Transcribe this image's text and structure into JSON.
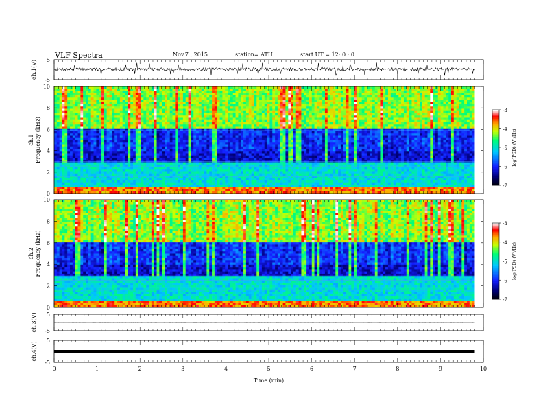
{
  "header": {
    "title": "VLF  Spectra",
    "date": "Nov.7  , 2015",
    "station": "station= ATH",
    "start": "start  UT  =   12: 0  : 0"
  },
  "colorbar": {
    "label": "log(PSD) (V²/Hz)",
    "ticks": [
      "-3",
      "-4",
      "-5",
      "-6",
      "-7"
    ],
    "colors": [
      "#000000",
      "#1a1aff",
      "#00c8ff",
      "#00ff80",
      "#ffff00",
      "#ff8000",
      "#ff0000",
      "#ffffff"
    ]
  },
  "chart_data": [
    {
      "type": "line",
      "ylabel": "ch.1(V)",
      "ylim": [
        -5,
        5
      ],
      "yticks": [
        "5",
        "-5"
      ],
      "description_values": {
        "baseline": 0.2,
        "noise_amplitude": 0.8
      }
    },
    {
      "type": "heatmap",
      "ylabel": "ch.1",
      "ylabel2": "Frequency  (kHz)",
      "ylim": [
        0,
        10
      ],
      "yticks": [
        "10",
        "8",
        "6",
        "4",
        "2",
        "0"
      ],
      "clim": [
        -7,
        -3
      ],
      "seed": 11
    },
    {
      "type": "heatmap",
      "ylabel": "ch.2",
      "ylabel2": "Frequency  (kHz)",
      "ylim": [
        0,
        10
      ],
      "yticks": [
        "10",
        "8",
        "6",
        "4",
        "2",
        "0"
      ],
      "clim": [
        -7,
        -3
      ],
      "seed": 29
    },
    {
      "type": "line",
      "ylabel": "ch.3(V)",
      "ylim": [
        -5,
        5
      ],
      "yticks": [
        "5",
        "-5"
      ],
      "description_values": {
        "baseline": 0.0,
        "noise_amplitude": 0.05
      }
    },
    {
      "type": "line",
      "ylabel": "ch.4(V)",
      "ylim": [
        -5,
        5
      ],
      "yticks": [
        "5",
        "-5"
      ],
      "description_values": {
        "baseline": 0.0,
        "noise_amplitude": 0.0
      }
    }
  ],
  "xaxis": {
    "label": "Time  (min)",
    "xlim": [
      0,
      10
    ],
    "ticks": [
      "0",
      "1",
      "2",
      "3",
      "4",
      "5",
      "6",
      "7",
      "8",
      "9",
      "10"
    ],
    "data_end": 9.8
  }
}
